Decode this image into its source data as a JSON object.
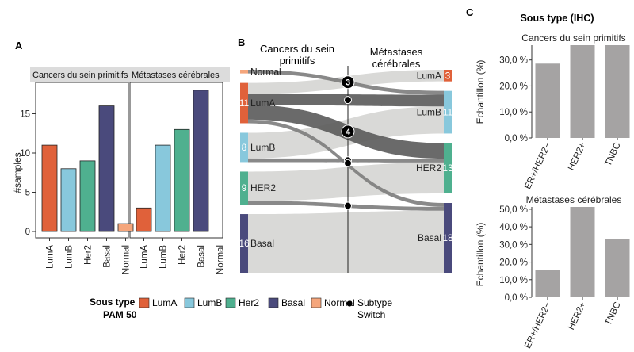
{
  "colors": {
    "LumA": "#e0613a",
    "LumB": "#88c8dc",
    "Her2": "#4fb08f",
    "Basal": "#4a4a7c",
    "Normal": "#f5a67c",
    "ihc_bar": "#a5a3a3",
    "switch_dot": "#000000"
  },
  "chart_data": [
    {
      "id": "A",
      "type": "bar",
      "panel_label": "A",
      "ylabel": "#samples",
      "ylim": [
        0,
        18.5
      ],
      "yticks": [
        0,
        5,
        10,
        15
      ],
      "categories": [
        "LumA",
        "LumB",
        "Her2",
        "Basal",
        "Normal"
      ],
      "facets": [
        {
          "name": "Cancers du sein primitifs",
          "values": [
            11,
            8,
            9,
            16,
            1
          ]
        },
        {
          "name": "Métastases cérébrales",
          "values": [
            3,
            11,
            13,
            18,
            0
          ]
        }
      ],
      "legend": {
        "title_line1": "Sous type",
        "title_line2": "PAM 50",
        "items": [
          "LumA",
          "LumB",
          "Her2",
          "Basal",
          "Normal"
        ],
        "switch_line1": "Subtype",
        "switch_line2": "Switch",
        "position": "bottom"
      }
    },
    {
      "id": "B",
      "type": "sankey",
      "panel_label": "B",
      "left_title_line1": "Cancers du sein",
      "left_title_line2": "primitifs",
      "right_title_line1": "Métastases",
      "right_title_line2": "cérébrales",
      "left_nodes": [
        {
          "name": "Normal",
          "label": "Normal",
          "count": 1,
          "count_label": ""
        },
        {
          "name": "LumA",
          "label": "LumA",
          "count": 11,
          "count_label": "11"
        },
        {
          "name": "LumB",
          "label": "LumB",
          "count": 8,
          "count_label": "8"
        },
        {
          "name": "Her2",
          "label": "HER2",
          "count": 9,
          "count_label": "9"
        },
        {
          "name": "Basal",
          "label": "Basal",
          "count": 16,
          "count_label": "16"
        }
      ],
      "right_nodes": [
        {
          "name": "LumA",
          "label": "LumA",
          "count": 3,
          "count_label": "3"
        },
        {
          "name": "LumB",
          "label": "LumB",
          "count": 11,
          "count_label": "11"
        },
        {
          "name": "Her2",
          "label": "HER2",
          "count": 13,
          "count_label": "13"
        },
        {
          "name": "Basal",
          "label": "Basal",
          "count": 18,
          "count_label": "18"
        }
      ],
      "flows": [
        {
          "from": "Normal",
          "to": "LumB",
          "value": 1,
          "switch": true
        },
        {
          "from": "LumA",
          "to": "LumA",
          "value": 3,
          "switch": false
        },
        {
          "from": "LumA",
          "to": "LumB",
          "value": 3,
          "switch": true
        },
        {
          "from": "LumA",
          "to": "Her2",
          "value": 4,
          "switch": true
        },
        {
          "from": "LumA",
          "to": "Basal",
          "value": 1,
          "switch": true
        },
        {
          "from": "LumB",
          "to": "LumB",
          "value": 7,
          "switch": false
        },
        {
          "from": "LumB",
          "to": "Her2",
          "value": 1,
          "switch": true
        },
        {
          "from": "Her2",
          "to": "Her2",
          "value": 8,
          "switch": false
        },
        {
          "from": "Her2",
          "to": "Basal",
          "value": 1,
          "switch": true
        },
        {
          "from": "Basal",
          "to": "Basal",
          "value": 16,
          "switch": false
        }
      ],
      "switch_markers": [
        {
          "label": "3",
          "big": true
        },
        {
          "label": "",
          "big": false
        },
        {
          "label": "4",
          "big": true
        },
        {
          "label": "",
          "big": false
        },
        {
          "label": "",
          "big": false
        },
        {
          "label": "",
          "big": false
        }
      ]
    },
    {
      "id": "C",
      "type": "bar",
      "panel_label": "C",
      "heading": "Sous type (IHC)",
      "ylabel": "Echantillon (%)",
      "categories": [
        "ER+/HER2−",
        "HER2+",
        "TNBC"
      ],
      "facets": [
        {
          "name": "Cancers du sein primitifs",
          "values": [
            28.6,
            35.7,
            35.7
          ],
          "ylim": [
            0,
            35.7
          ],
          "yticks": [
            0,
            10,
            20,
            30
          ],
          "ytick_labels": [
            "0,0 %",
            "10,0 %",
            "20,0 %",
            "30,0 %"
          ]
        },
        {
          "name": "Métastases cérébrales",
          "values": [
            15.4,
            51.3,
            33.3
          ],
          "ylim": [
            0,
            51.3
          ],
          "yticks": [
            0,
            10,
            20,
            30,
            40,
            50
          ],
          "ytick_labels": [
            "0,0 %",
            "10,0 %",
            "20,0 %",
            "30,0 %",
            "40,0 %",
            "50,0 %"
          ]
        }
      ]
    }
  ]
}
